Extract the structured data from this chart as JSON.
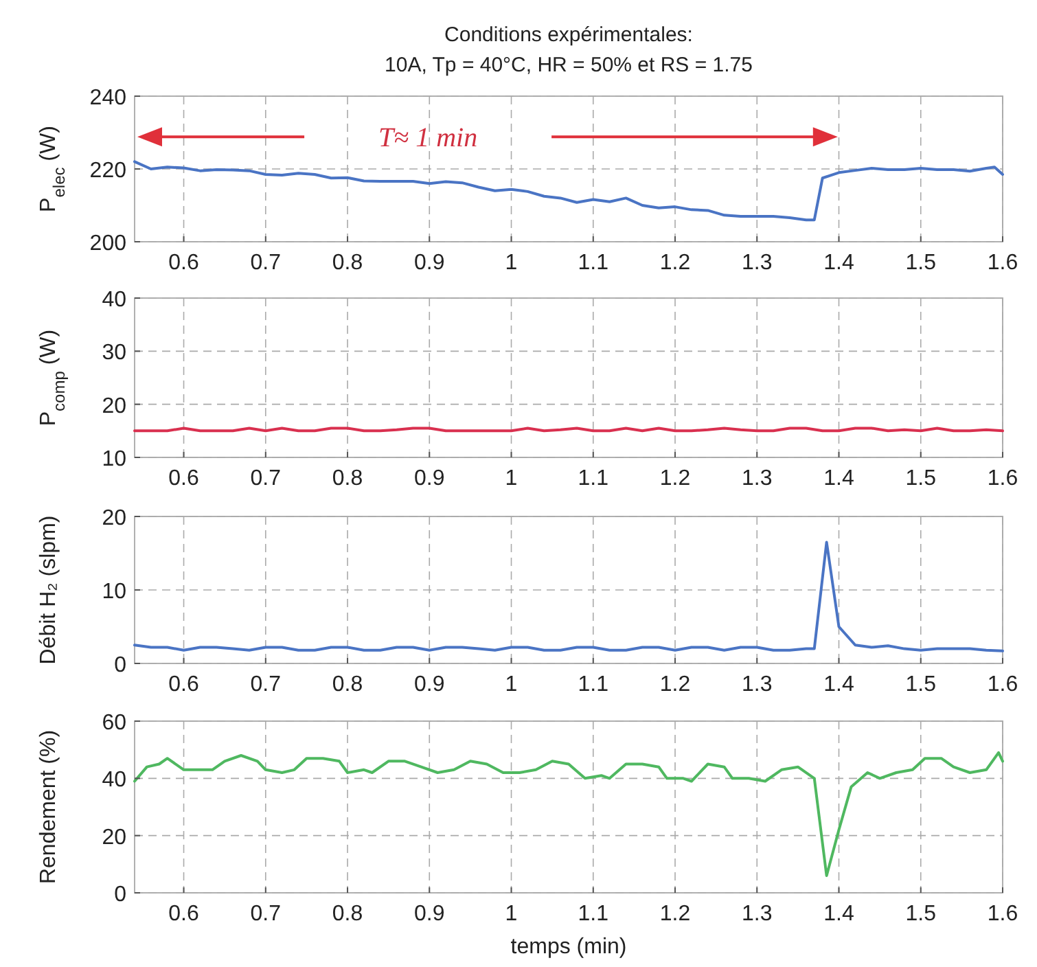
{
  "chart_data": [
    {
      "type": "line",
      "title": "Conditions expérimentales:",
      "subtitle": "10A, Tp = 40°C, HR = 50% et RS = 1.75",
      "ylabel": "P$_{elec}$ (W)",
      "annotations": [
        "T≈ 1 min"
      ],
      "grid": true,
      "xlim": [
        0.54,
        1.6
      ],
      "xticks": [
        0.6,
        0.7,
        0.8,
        0.9,
        1,
        1.1,
        1.2,
        1.3,
        1.4,
        1.5,
        1.6
      ],
      "ylim": [
        200,
        240
      ],
      "yticks": [
        200,
        220,
        240
      ],
      "x": [
        0.54,
        0.56,
        0.58,
        0.6,
        0.62,
        0.64,
        0.66,
        0.68,
        0.7,
        0.72,
        0.74,
        0.76,
        0.78,
        0.8,
        0.82,
        0.84,
        0.86,
        0.88,
        0.9,
        0.92,
        0.94,
        0.96,
        0.98,
        1.0,
        1.02,
        1.04,
        1.06,
        1.08,
        1.1,
        1.12,
        1.14,
        1.16,
        1.18,
        1.2,
        1.22,
        1.24,
        1.26,
        1.28,
        1.3,
        1.32,
        1.34,
        1.36,
        1.37,
        1.38,
        1.4,
        1.42,
        1.44,
        1.46,
        1.48,
        1.5,
        1.52,
        1.54,
        1.56,
        1.58,
        1.59,
        1.6
      ],
      "series": [
        {
          "color": "#4a74c4",
          "values": [
            222,
            220,
            220.5,
            220.3,
            219.5,
            219.8,
            219.7,
            219.5,
            218.5,
            218.3,
            218.8,
            218.5,
            217.5,
            217.6,
            216.7,
            216.6,
            216.6,
            216.6,
            216,
            216.5,
            216.2,
            215,
            214,
            214.4,
            213.8,
            212.5,
            212,
            210.8,
            211.6,
            211,
            212,
            210,
            209.3,
            209.6,
            208.8,
            208.6,
            207.3,
            207,
            207,
            207,
            206.6,
            206,
            206,
            217.5,
            219,
            219.6,
            220.2,
            219.8,
            219.8,
            220.2,
            219.8,
            219.8,
            219.4,
            220.2,
            220.5,
            218.5
          ]
        }
      ]
    },
    {
      "type": "line",
      "ylabel": "P$_{comp}$ (W)",
      "grid": true,
      "xlim": [
        0.54,
        1.6
      ],
      "xticks": [
        0.6,
        0.7,
        0.8,
        0.9,
        1,
        1.1,
        1.2,
        1.3,
        1.4,
        1.5,
        1.6
      ],
      "ylim": [
        10,
        40
      ],
      "yticks": [
        10,
        20,
        30,
        40
      ],
      "x": [
        0.54,
        0.56,
        0.58,
        0.6,
        0.62,
        0.64,
        0.66,
        0.68,
        0.7,
        0.72,
        0.74,
        0.76,
        0.78,
        0.8,
        0.82,
        0.84,
        0.86,
        0.88,
        0.9,
        0.92,
        0.94,
        0.96,
        0.98,
        1.0,
        1.02,
        1.04,
        1.06,
        1.08,
        1.1,
        1.12,
        1.14,
        1.16,
        1.18,
        1.2,
        1.22,
        1.24,
        1.26,
        1.28,
        1.3,
        1.32,
        1.34,
        1.36,
        1.38,
        1.4,
        1.42,
        1.44,
        1.46,
        1.48,
        1.5,
        1.52,
        1.54,
        1.56,
        1.58,
        1.6
      ],
      "series": [
        {
          "color": "#d9304f",
          "values": [
            15,
            15,
            15,
            15.5,
            15,
            15,
            15,
            15.5,
            15,
            15.5,
            15,
            15,
            15.5,
            15.5,
            15,
            15,
            15.2,
            15.5,
            15.5,
            15,
            15,
            15,
            15,
            15,
            15.5,
            15,
            15.2,
            15.5,
            15,
            15,
            15.5,
            15,
            15.5,
            15,
            15,
            15.2,
            15.5,
            15.2,
            15,
            15,
            15.5,
            15.5,
            15,
            15,
            15.5,
            15.5,
            15,
            15.2,
            15,
            15.5,
            15,
            15,
            15.2,
            15
          ]
        }
      ]
    },
    {
      "type": "line",
      "ylabel": "Débit H₂ (slpm)",
      "grid": true,
      "xlim": [
        0.54,
        1.6
      ],
      "xticks": [
        0.6,
        0.7,
        0.8,
        0.9,
        1,
        1.1,
        1.2,
        1.3,
        1.4,
        1.5,
        1.6
      ],
      "ylim": [
        0,
        20
      ],
      "yticks": [
        0,
        10,
        20
      ],
      "x": [
        0.54,
        0.56,
        0.58,
        0.6,
        0.62,
        0.64,
        0.66,
        0.68,
        0.7,
        0.72,
        0.74,
        0.76,
        0.78,
        0.8,
        0.82,
        0.84,
        0.86,
        0.88,
        0.9,
        0.92,
        0.94,
        0.96,
        0.98,
        1.0,
        1.02,
        1.04,
        1.06,
        1.08,
        1.1,
        1.12,
        1.14,
        1.16,
        1.18,
        1.2,
        1.22,
        1.24,
        1.26,
        1.28,
        1.3,
        1.32,
        1.34,
        1.36,
        1.37,
        1.385,
        1.4,
        1.42,
        1.44,
        1.46,
        1.48,
        1.5,
        1.52,
        1.54,
        1.56,
        1.58,
        1.6
      ],
      "series": [
        {
          "color": "#4a74c4",
          "values": [
            2.5,
            2.2,
            2.2,
            1.8,
            2.2,
            2.2,
            2,
            1.8,
            2.2,
            2.2,
            1.8,
            1.8,
            2.2,
            2.2,
            1.8,
            1.8,
            2.2,
            2.2,
            1.8,
            2.2,
            2.2,
            2,
            1.8,
            2.2,
            2.2,
            1.8,
            1.8,
            2.2,
            2.2,
            1.8,
            1.8,
            2.2,
            2.2,
            1.8,
            2.2,
            2.2,
            1.8,
            2.2,
            2.2,
            1.8,
            1.8,
            2,
            2,
            16.5,
            5,
            2.5,
            2.2,
            2.4,
            2,
            1.8,
            2,
            2,
            2,
            1.8,
            1.7
          ]
        }
      ]
    },
    {
      "type": "line",
      "ylabel": "Rendement (%)",
      "xlabel": "temps (min)",
      "grid": true,
      "xlim": [
        0.54,
        1.6
      ],
      "xticks": [
        0.6,
        0.7,
        0.8,
        0.9,
        1,
        1.1,
        1.2,
        1.3,
        1.4,
        1.5,
        1.6
      ],
      "ylim": [
        0,
        60
      ],
      "yticks": [
        0,
        20,
        40,
        60
      ],
      "x": [
        0.54,
        0.555,
        0.57,
        0.58,
        0.6,
        0.62,
        0.635,
        0.65,
        0.67,
        0.69,
        0.7,
        0.72,
        0.735,
        0.75,
        0.77,
        0.79,
        0.8,
        0.82,
        0.83,
        0.85,
        0.87,
        0.89,
        0.91,
        0.93,
        0.95,
        0.97,
        0.99,
        1.01,
        1.03,
        1.05,
        1.07,
        1.09,
        1.11,
        1.12,
        1.14,
        1.16,
        1.18,
        1.19,
        1.21,
        1.22,
        1.24,
        1.26,
        1.27,
        1.29,
        1.31,
        1.33,
        1.35,
        1.37,
        1.385,
        1.4,
        1.415,
        1.435,
        1.45,
        1.47,
        1.49,
        1.505,
        1.525,
        1.54,
        1.56,
        1.58,
        1.595,
        1.6
      ],
      "series": [
        {
          "color": "#4fb860",
          "values": [
            39,
            44,
            45,
            47,
            43,
            43,
            43,
            46,
            48,
            46,
            43,
            42,
            43,
            47,
            47,
            46,
            42,
            43,
            42,
            46,
            46,
            44,
            42,
            43,
            46,
            45,
            42,
            42,
            43,
            46,
            45,
            40,
            41,
            40,
            45,
            45,
            44,
            40,
            40,
            39,
            45,
            44,
            40,
            40,
            39,
            43,
            44,
            40,
            6,
            22,
            37,
            42,
            40,
            42,
            43,
            47,
            47,
            44,
            42,
            43,
            49,
            46
          ]
        }
      ]
    }
  ]
}
